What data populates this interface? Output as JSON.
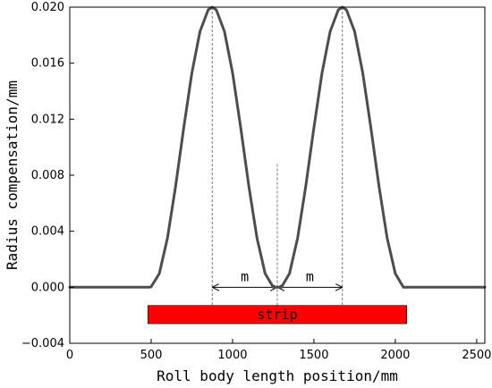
{
  "chart_data": {
    "type": "line",
    "title": "",
    "xlabel": "Roll body length position/mm",
    "ylabel": "Radius compensation/mm",
    "xlim": [
      0,
      2550
    ],
    "ylim": [
      -0.004,
      0.02
    ],
    "x_ticks": [
      0,
      500,
      1000,
      1500,
      2000,
      2500
    ],
    "x_tick_labels": [
      "0",
      "500",
      "1000",
      "1500",
      "2000",
      "2500"
    ],
    "y_ticks": [
      -0.004,
      0.0,
      0.004,
      0.008,
      0.012,
      0.016,
      0.02
    ],
    "y_tick_labels": [
      "−0.004",
      "0.000",
      "0.004",
      "0.008",
      "0.012",
      "0.016",
      "0.020"
    ],
    "grid": false,
    "series": [
      {
        "color": "#4d4d4d",
        "x": [
          0,
          490,
          500,
          550,
          600,
          650,
          700,
          750,
          800,
          850,
          875,
          900,
          950,
          1000,
          1050,
          1100,
          1150,
          1200,
          1250,
          1275,
          1300,
          1350,
          1400,
          1450,
          1500,
          1550,
          1600,
          1650,
          1675,
          1700,
          1750,
          1800,
          1850,
          1900,
          1950,
          2000,
          2050,
          2060,
          2550
        ],
        "y": [
          0,
          0,
          4e-05,
          0.00098,
          0.00351,
          0.00721,
          0.01139,
          0.01531,
          0.01827,
          0.01981,
          0.02,
          0.01981,
          0.01827,
          0.01531,
          0.01139,
          0.00721,
          0.00351,
          0.00098,
          0.0,
          0.0,
          0.0,
          0.00098,
          0.00351,
          0.00721,
          0.01139,
          0.01531,
          0.01827,
          0.01981,
          0.02,
          0.01981,
          0.01827,
          0.01531,
          0.01139,
          0.00721,
          0.00351,
          0.00098,
          0.0,
          0,
          0
        ]
      }
    ],
    "guides": [
      {
        "x": 875,
        "y_from": 0.02,
        "y_to": -0.0013
      },
      {
        "x": 1675,
        "y_from": 0.02,
        "y_to": -0.0013
      },
      {
        "x": 1275,
        "y_from": 0.0088,
        "y_to": -0.0013
      }
    ],
    "annotations": [
      {
        "label": "m",
        "x_from": 875,
        "x_to": 1275,
        "y": 0.0
      },
      {
        "label": "m",
        "x_from": 1275,
        "x_to": 1675,
        "y": 0.0
      }
    ],
    "strip": {
      "label": "strip",
      "x_from": 480,
      "x_to": 2070,
      "y_top": -0.0013,
      "y_bottom": -0.0026,
      "color": "#ff0000"
    }
  }
}
